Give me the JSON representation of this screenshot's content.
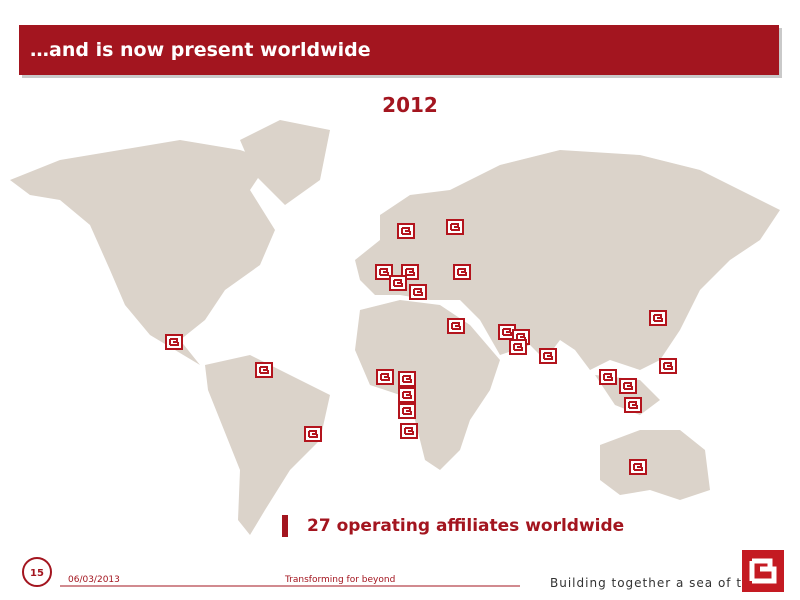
{
  "header": {
    "title": "…and is now present worldwide"
  },
  "year": "2012",
  "caption": "27 operating affiliates worldwide",
  "footer": {
    "page": "15",
    "date": "06/03/2013",
    "center": "Transforming for beyond",
    "tagline": "Building together a sea of trust"
  }
}
